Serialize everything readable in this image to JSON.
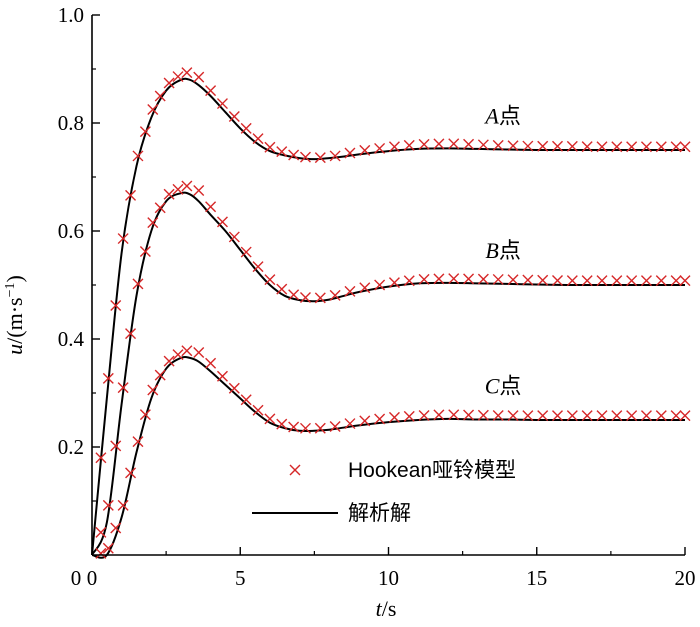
{
  "chart_data": {
    "type": "line",
    "xlabel_var": "t",
    "xlabel_unit": "/s",
    "ylabel_var": "u",
    "ylabel_unit": "/(m·s",
    "ylabel_exp": "−1",
    "ylabel_close": ")",
    "xlim": [
      0,
      20
    ],
    "ylim": [
      0,
      1.0
    ],
    "xticks": [
      0,
      5,
      10,
      15,
      20
    ],
    "xtick_labels": [
      "0",
      "5",
      "10",
      "15",
      "20"
    ],
    "yticks": [
      0.2,
      0.4,
      0.6,
      0.8,
      1.0
    ],
    "ytick_labels": [
      "0.2",
      "0.4",
      "0.6",
      "0.8",
      "1.0"
    ],
    "grid": false,
    "legend_position": "lower-center",
    "legend": [
      {
        "label": "Hookean哑铃模型",
        "marker": "x",
        "color": "#d62728"
      },
      {
        "label": "解析解",
        "marker": "line",
        "color": "#000000"
      }
    ],
    "series": [
      {
        "point": "A",
        "suffix": "点",
        "x": [
          0,
          0.5,
          1.0,
          1.5,
          2.0,
          2.5,
          3.0,
          3.3,
          3.6,
          4.0,
          4.5,
          5.0,
          5.5,
          6.0,
          6.5,
          7.0,
          7.5,
          8.0,
          8.5,
          9.0,
          10.0,
          11.0,
          12.0,
          13.0,
          14.0,
          15.0,
          16.0,
          17.0,
          18.0,
          19.0,
          20.0
        ],
        "analytic": [
          0.0,
          0.29,
          0.56,
          0.72,
          0.81,
          0.86,
          0.88,
          0.88,
          0.87,
          0.85,
          0.82,
          0.79,
          0.765,
          0.748,
          0.74,
          0.735,
          0.733,
          0.735,
          0.738,
          0.742,
          0.748,
          0.752,
          0.753,
          0.752,
          0.751,
          0.75,
          0.75,
          0.75,
          0.75,
          0.75,
          0.75
        ],
        "hookean": [
          0.0,
          0.3,
          0.57,
          0.73,
          0.82,
          0.87,
          0.89,
          0.895,
          0.885,
          0.86,
          0.83,
          0.8,
          0.775,
          0.755,
          0.745,
          0.738,
          0.735,
          0.737,
          0.742,
          0.748,
          0.755,
          0.76,
          0.762,
          0.76,
          0.758,
          0.757,
          0.757,
          0.756,
          0.756,
          0.756,
          0.756
        ]
      },
      {
        "point": "B",
        "suffix": "点",
        "x": [
          0,
          0.5,
          1.0,
          1.5,
          2.0,
          2.5,
          3.0,
          3.3,
          3.6,
          4.0,
          4.5,
          5.0,
          5.5,
          6.0,
          6.5,
          7.0,
          7.5,
          8.0,
          8.5,
          9.0,
          10.0,
          11.0,
          12.0,
          13.0,
          14.0,
          15.0,
          16.0,
          17.0,
          18.0,
          19.0,
          20.0
        ],
        "analytic": [
          0.0,
          0.06,
          0.28,
          0.48,
          0.6,
          0.655,
          0.67,
          0.668,
          0.655,
          0.63,
          0.6,
          0.565,
          0.53,
          0.5,
          0.48,
          0.472,
          0.47,
          0.473,
          0.48,
          0.487,
          0.497,
          0.503,
          0.504,
          0.503,
          0.502,
          0.501,
          0.5,
          0.5,
          0.5,
          0.5,
          0.5
        ],
        "hookean": [
          0.0,
          0.07,
          0.29,
          0.49,
          0.61,
          0.665,
          0.68,
          0.685,
          0.675,
          0.645,
          0.61,
          0.575,
          0.54,
          0.51,
          0.488,
          0.478,
          0.475,
          0.478,
          0.485,
          0.493,
          0.503,
          0.51,
          0.512,
          0.511,
          0.51,
          0.509,
          0.508,
          0.508,
          0.508,
          0.508,
          0.508
        ]
      },
      {
        "point": "C",
        "suffix": "点",
        "x": [
          0,
          0.5,
          1.0,
          1.5,
          2.0,
          2.5,
          3.0,
          3.3,
          3.6,
          4.0,
          4.5,
          5.0,
          5.5,
          6.0,
          6.5,
          7.0,
          7.5,
          8.0,
          8.5,
          9.0,
          10.0,
          11.0,
          12.0,
          13.0,
          14.0,
          15.0,
          16.0,
          17.0,
          18.0,
          19.0,
          20.0
        ],
        "analytic": [
          0.0,
          0.0,
          0.07,
          0.19,
          0.29,
          0.345,
          0.365,
          0.365,
          0.358,
          0.34,
          0.315,
          0.29,
          0.265,
          0.245,
          0.235,
          0.23,
          0.23,
          0.232,
          0.236,
          0.24,
          0.246,
          0.25,
          0.252,
          0.251,
          0.251,
          0.25,
          0.25,
          0.25,
          0.25,
          0.25,
          0.25
        ],
        "hookean": [
          0.0,
          0.005,
          0.08,
          0.2,
          0.3,
          0.355,
          0.375,
          0.38,
          0.375,
          0.355,
          0.325,
          0.298,
          0.272,
          0.252,
          0.24,
          0.235,
          0.234,
          0.236,
          0.241,
          0.247,
          0.254,
          0.258,
          0.26,
          0.259,
          0.258,
          0.258,
          0.258,
          0.258,
          0.258,
          0.258,
          0.258
        ]
      }
    ],
    "marker_x": [
      0.3,
      0.55,
      0.8,
      1.05,
      1.3,
      1.55,
      1.8,
      2.05,
      2.3,
      2.6,
      2.9,
      3.2,
      3.6,
      4.0,
      4.4,
      4.8,
      5.2,
      5.6,
      6.0,
      6.4,
      6.8,
      7.2,
      7.7,
      8.2,
      8.7,
      9.2,
      9.7,
      10.2,
      10.7,
      11.2,
      11.7,
      12.2,
      12.7,
      13.2,
      13.7,
      14.2,
      14.7,
      15.2,
      15.7,
      16.2,
      16.7,
      17.2,
      17.7,
      18.2,
      18.7,
      19.2,
      19.7,
      20.0
    ]
  }
}
